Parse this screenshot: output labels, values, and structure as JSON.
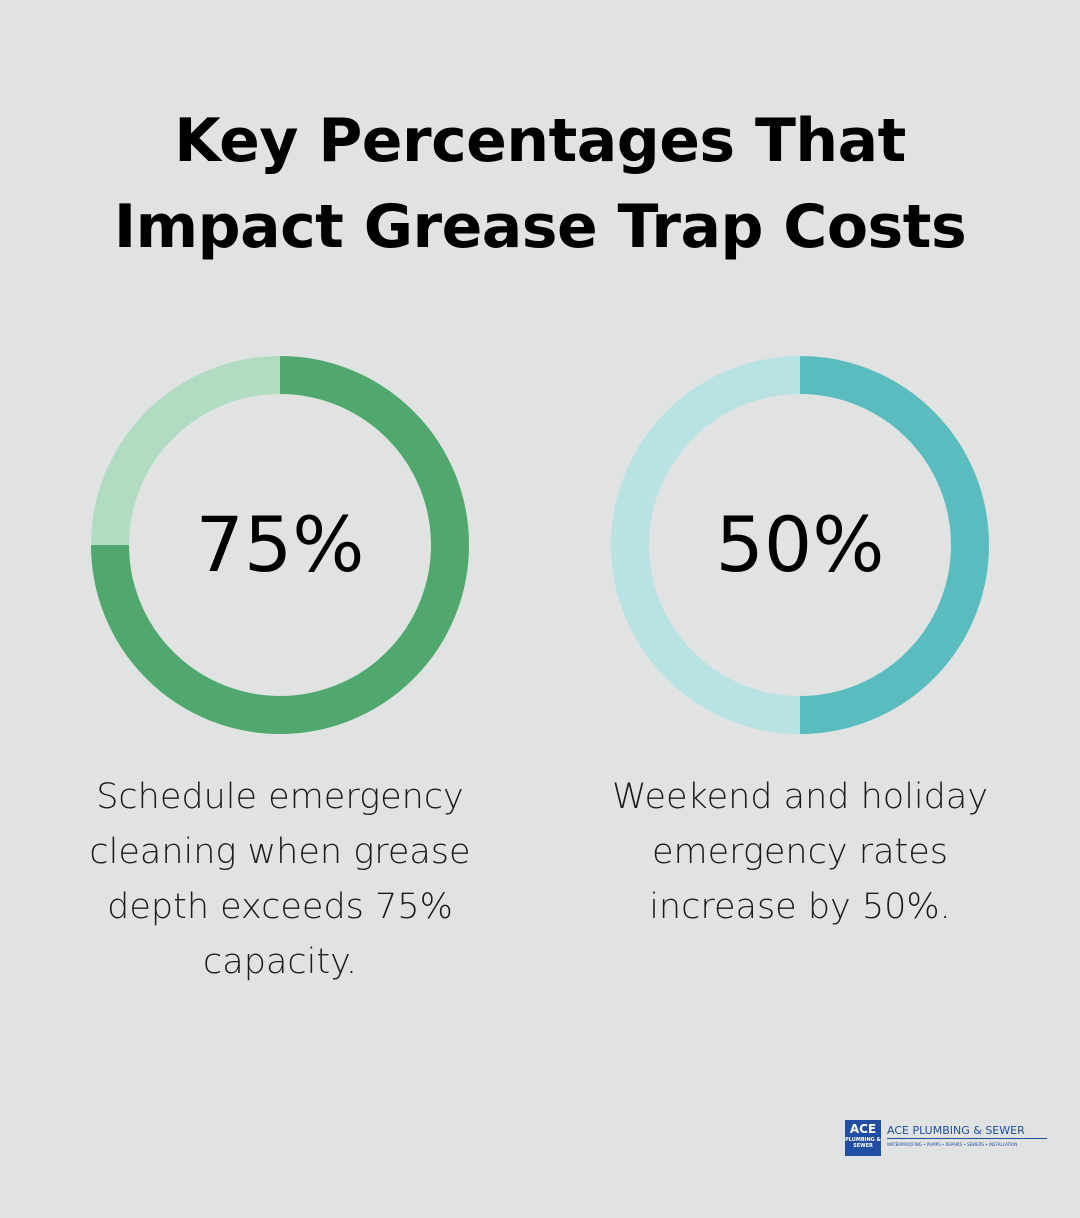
{
  "title": {
    "line1": "Key Percentages That",
    "line2": "Impact Grease Trap Costs"
  },
  "chart_data": [
    {
      "type": "pie",
      "value": 75,
      "unit": "%",
      "label": "75%",
      "description": "Schedule emergency cleaning when grease depth exceeds 75% capacity.",
      "colors": {
        "filled": "#50a86e",
        "track": "#b1dcc2"
      }
    },
    {
      "type": "pie",
      "value": 50,
      "unit": "%",
      "label": "50%",
      "description": "Weekend and holiday emergency rates increase by 50%.",
      "colors": {
        "filled": "#5bbcc0",
        "track": "#b9e2e4"
      }
    }
  ],
  "logo": {
    "mark_big": "ACE",
    "mark_small": "PLUMBING & SEWER",
    "name": "ACE PLUMBING & SEWER",
    "tagline": "WATERPROOFING • PUMPS • REPAIRS • SEWERS • INSTALLATION",
    "color": "#1f4ea3"
  },
  "background": "#e1e3e2"
}
